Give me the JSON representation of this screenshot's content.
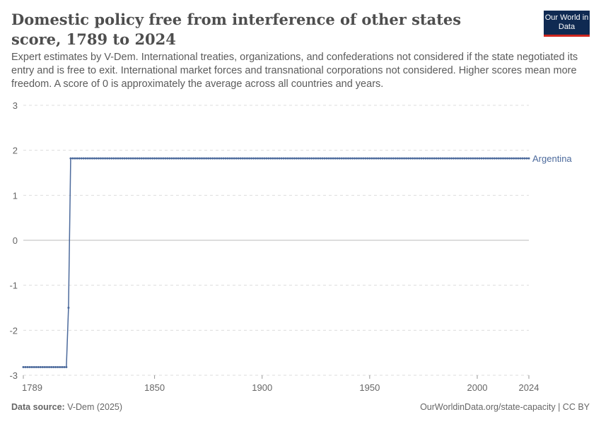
{
  "header": {
    "title": "Domestic policy free from interference of other states score, 1789 to 2024",
    "subtitle": "Expert estimates by V-Dem. International treaties, organizations, and confederations not considered if the state negotiated its entry and is free to exit. International market forces and transnational corporations not considered. Higher scores mean more freedom. A score of 0 is approximately the average across all countries and years.",
    "logo": "Our World in Data"
  },
  "footer": {
    "source_label": "Data source:",
    "source": "V-Dem (2025)",
    "url": "OurWorldinData.org/state-capacity | CC BY"
  },
  "chart_data": {
    "type": "line",
    "title": "Domestic policy free from interference of other states score, 1789 to 2024",
    "xlim": [
      1789,
      2024
    ],
    "ylim": [
      -3,
      3
    ],
    "x_ticks": [
      "1789",
      "1850",
      "1900",
      "1950",
      "2000",
      "2024"
    ],
    "y_ticks": [
      "3",
      "2",
      "1",
      "0",
      "-1",
      "-2",
      "-3"
    ],
    "grid": "horizontal dashed",
    "series": [
      {
        "name": "Argentina",
        "color": "#4c6a9c",
        "segments": [
          {
            "from": 1789,
            "to": 1809,
            "value": -2.82
          },
          {
            "from": 1810,
            "to": 1810,
            "value": -1.5
          },
          {
            "from": 1811,
            "to": 2024,
            "value": 1.82
          }
        ]
      }
    ]
  }
}
